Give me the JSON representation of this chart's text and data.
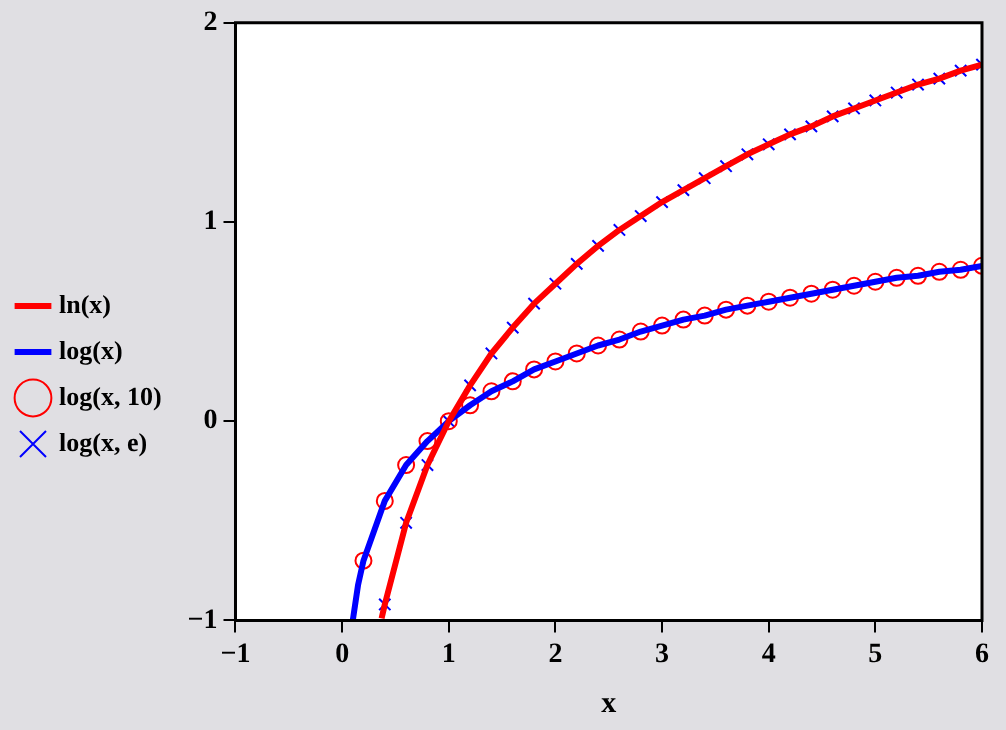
{
  "chart_data": {
    "type": "line",
    "xlabel": "x",
    "xlim": [
      -1,
      6
    ],
    "xticks": [
      -1,
      0,
      1,
      2,
      3,
      4,
      5,
      6
    ],
    "ylim": [
      -1,
      2
    ],
    "yticks": [
      -1,
      0,
      1,
      2
    ],
    "grid": false,
    "legend": "left",
    "series": [
      {
        "name": "ln(x)",
        "type": "line",
        "marker": "none",
        "color": "#ff0000",
        "x": [
          0.37,
          0.4,
          0.6,
          0.8,
          1.0,
          1.2,
          1.4,
          1.6,
          1.8,
          2.0,
          2.2,
          2.4,
          2.6,
          2.8,
          3.0,
          3.2,
          3.4,
          3.6,
          3.8,
          4.0,
          4.2,
          4.4,
          4.6,
          4.8,
          5.0,
          5.2,
          5.4,
          5.6,
          5.8,
          6.0
        ],
        "values": [
          -0.99,
          -0.92,
          -0.51,
          -0.22,
          0,
          0.18,
          0.34,
          0.47,
          0.59,
          0.69,
          0.79,
          0.88,
          0.96,
          1.03,
          1.1,
          1.16,
          1.22,
          1.28,
          1.34,
          1.39,
          1.44,
          1.48,
          1.53,
          1.57,
          1.61,
          1.65,
          1.69,
          1.72,
          1.76,
          1.79
        ]
      },
      {
        "name": "log(x)",
        "type": "line",
        "marker": "none",
        "color": "#0000ff",
        "x": [
          0.1,
          0.15,
          0.2,
          0.4,
          0.6,
          0.8,
          1.0,
          1.2,
          1.4,
          1.6,
          1.8,
          2.0,
          2.2,
          2.4,
          2.6,
          2.8,
          3.0,
          3.2,
          3.4,
          3.6,
          3.8,
          4.0,
          4.2,
          4.4,
          4.6,
          4.8,
          5.0,
          5.2,
          5.4,
          5.6,
          5.8,
          6.0
        ],
        "values": [
          -1,
          -0.82,
          -0.7,
          -0.4,
          -0.22,
          -0.1,
          0,
          0.08,
          0.15,
          0.2,
          0.26,
          0.3,
          0.34,
          0.38,
          0.41,
          0.45,
          0.48,
          0.51,
          0.53,
          0.56,
          0.58,
          0.6,
          0.62,
          0.64,
          0.66,
          0.68,
          0.7,
          0.72,
          0.73,
          0.75,
          0.76,
          0.78
        ]
      },
      {
        "name": "log(x, 10)",
        "type": "scatter",
        "marker": "circle",
        "color": "#ff0000",
        "x": [
          0.2,
          0.4,
          0.6,
          0.8,
          1.0,
          1.2,
          1.4,
          1.6,
          1.8,
          2.0,
          2.2,
          2.4,
          2.6,
          2.8,
          3.0,
          3.2,
          3.4,
          3.6,
          3.8,
          4.0,
          4.2,
          4.4,
          4.6,
          4.8,
          5.0,
          5.2,
          5.4,
          5.6,
          5.8,
          6.0
        ],
        "values": [
          -0.7,
          -0.4,
          -0.22,
          -0.1,
          0,
          0.08,
          0.15,
          0.2,
          0.26,
          0.3,
          0.34,
          0.38,
          0.41,
          0.45,
          0.48,
          0.51,
          0.53,
          0.56,
          0.58,
          0.6,
          0.62,
          0.64,
          0.66,
          0.68,
          0.7,
          0.72,
          0.73,
          0.75,
          0.76,
          0.78
        ]
      },
      {
        "name": "log(x, e)",
        "type": "scatter",
        "marker": "cross",
        "color": "#0000ff",
        "x": [
          0.4,
          0.6,
          0.8,
          1.0,
          1.2,
          1.4,
          1.6,
          1.8,
          2.0,
          2.2,
          2.4,
          2.6,
          2.8,
          3.0,
          3.2,
          3.4,
          3.6,
          3.8,
          4.0,
          4.2,
          4.4,
          4.6,
          4.8,
          5.0,
          5.2,
          5.4,
          5.6,
          5.8,
          6.0
        ],
        "values": [
          -0.92,
          -0.51,
          -0.22,
          0,
          0.18,
          0.34,
          0.47,
          0.59,
          0.69,
          0.79,
          0.88,
          0.96,
          1.03,
          1.1,
          1.16,
          1.22,
          1.28,
          1.34,
          1.39,
          1.44,
          1.48,
          1.53,
          1.57,
          1.61,
          1.65,
          1.69,
          1.72,
          1.76,
          1.79
        ]
      }
    ]
  }
}
